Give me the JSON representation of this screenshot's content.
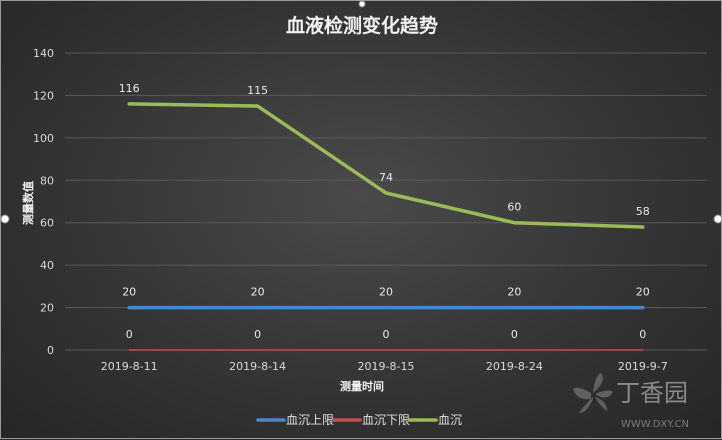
{
  "chart_data": {
    "type": "line",
    "title": "血液检测变化趋势",
    "xlabel": "测量时间",
    "ylabel": "测量数值",
    "categories": [
      "2019-8-11",
      "2019-8-14",
      "2019-8-15",
      "2019-8-24",
      "2019-9-7"
    ],
    "ylim": [
      0,
      140
    ],
    "yticks": [
      0,
      20,
      40,
      60,
      80,
      100,
      120,
      140
    ],
    "grid": true,
    "legend_position": "bottom",
    "series": [
      {
        "name": "血沉上限",
        "values": [
          20,
          20,
          20,
          20,
          20
        ],
        "color": "#4a86c8"
      },
      {
        "name": "血沉下限",
        "values": [
          0,
          0,
          0,
          0,
          0
        ],
        "color": "#c0504d"
      },
      {
        "name": "血沉",
        "values": [
          116,
          115,
          74,
          60,
          58
        ],
        "color": "#9bbb59"
      }
    ]
  },
  "watermark": {
    "brand": "丁香园",
    "url": "WWW.DXY.CN"
  }
}
